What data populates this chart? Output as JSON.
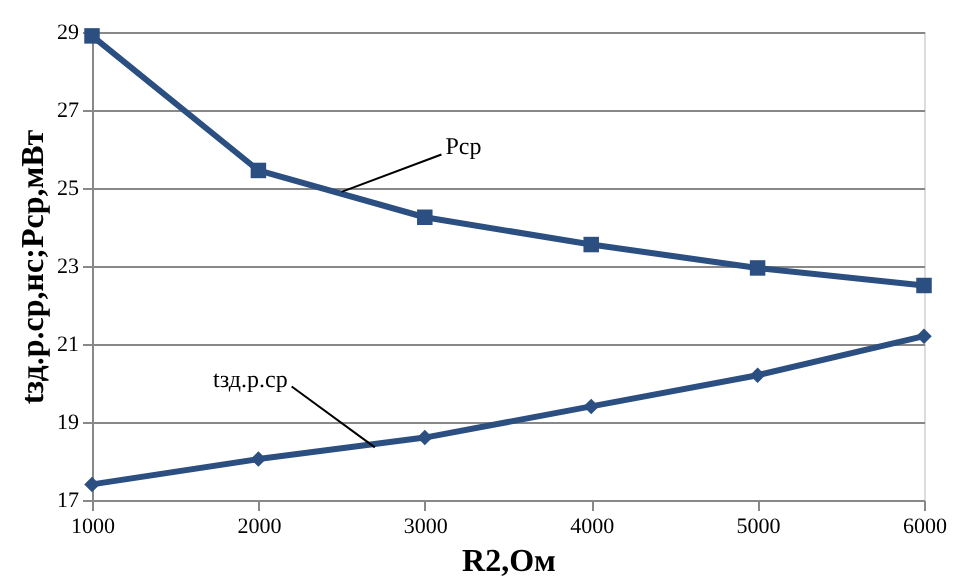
{
  "chart_data": {
    "type": "line",
    "xlabel": "R2,Ом",
    "ylabel": "tзд.р.ср,нс;Pср,мВт",
    "x": [
      1000,
      2000,
      3000,
      4000,
      5000,
      6000
    ],
    "series": [
      {
        "color": "#2b4f81",
        "marker": "square",
        "values": [
          28.9,
          25.45,
          24.25,
          23.55,
          22.95,
          22.5
        ]
      },
      {
        "color": "#2b4f81",
        "marker": "diamond",
        "values": [
          17.4,
          18.05,
          18.6,
          19.4,
          20.2,
          21.2
        ]
      }
    ],
    "annotations": [
      {
        "text": "Pср",
        "x": 2500,
        "y": 24.9
      },
      {
        "text": "tзд.р.ср",
        "x": 2700,
        "y": 18.35
      }
    ],
    "xlim": [
      1000,
      6000
    ],
    "xticks": [
      1000,
      2000,
      3000,
      4000,
      5000,
      6000
    ],
    "ylim": [
      17,
      29
    ],
    "yticks": [
      17,
      19,
      21,
      23,
      25,
      27,
      29
    ],
    "grid": "y"
  }
}
